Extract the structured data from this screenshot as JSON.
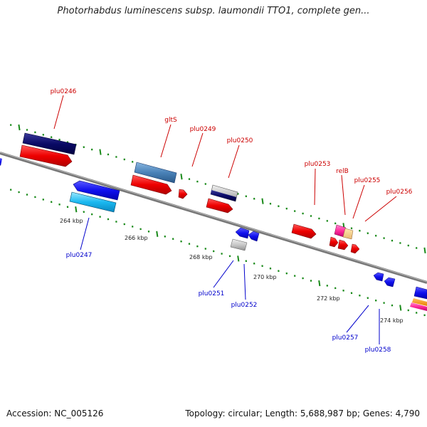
{
  "title": "Photorhabdus luminescens subsp. laumondii TTO1, complete gen...",
  "footer": {
    "accession": "Accession: NC_005126",
    "topology": "Topology: circular; Length: 5,688,987 bp; Genes: 4,790"
  },
  "colors": {
    "backbone": "#808080",
    "tick": "#1a8a1a",
    "label_forward": "#cc0000",
    "label_reverse": "#0000cc"
  },
  "scale_labels": [
    "264 kbp",
    "266 kbp",
    "268 kbp",
    "270 kbp",
    "272 kbp",
    "274 kbp"
  ],
  "gene_labels": {
    "plu0246": "plu0246",
    "gltS": "gltS",
    "plu0249": "plu0249",
    "plu0250": "plu0250",
    "plu0253": "plu0253",
    "relB": "relB",
    "plu0255": "plu0255",
    "plu0256": "plu0256",
    "plu0247": "plu0247",
    "plu0251": "plu0251",
    "plu0252": "plu0252",
    "plu0257": "plu0257",
    "plu0258": "plu0258"
  }
}
